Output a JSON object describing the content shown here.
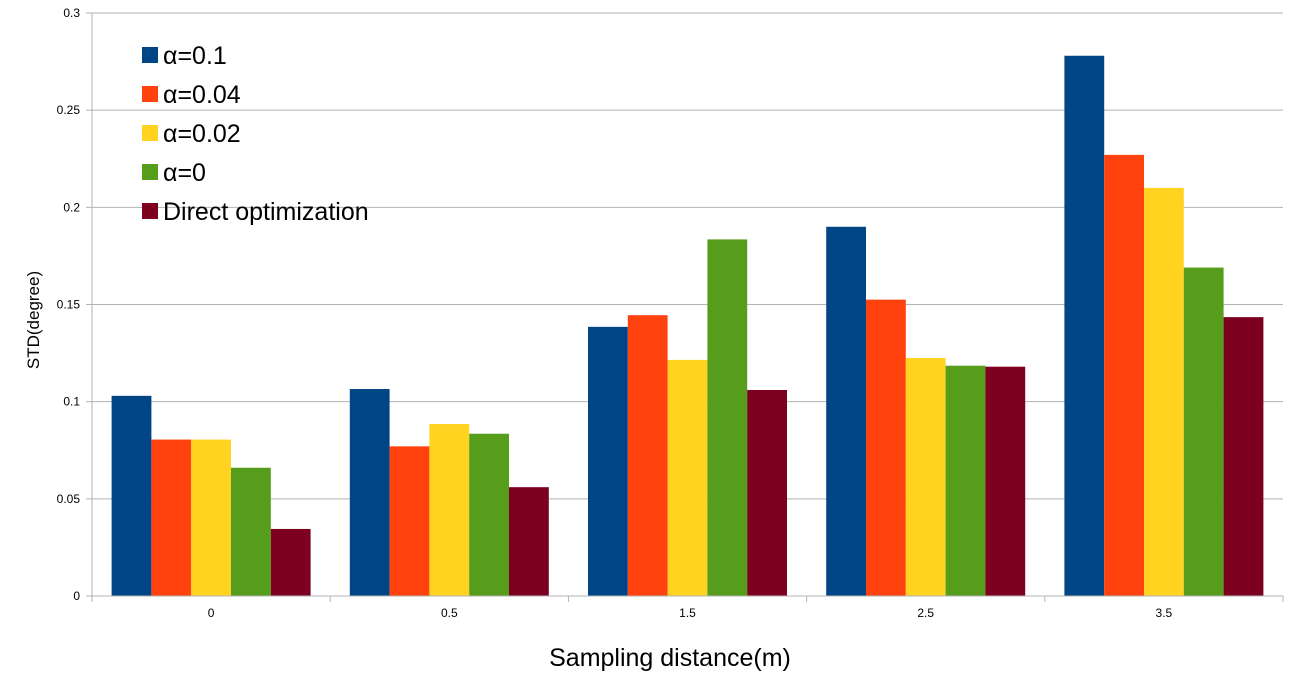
{
  "chart_data": {
    "type": "bar",
    "title": "",
    "xlabel": "Sampling distance(m)",
    "ylabel": "STD(degree)",
    "categories": [
      "0",
      "0.5",
      "1.5",
      "2.5",
      "3.5"
    ],
    "ylim": [
      0,
      0.3
    ],
    "yticks": [
      0,
      0.05,
      0.1,
      0.15,
      0.2,
      0.25,
      0.3
    ],
    "ytick_labels": [
      "0",
      "0.05",
      "0.1",
      "0.15",
      "0.2",
      "0.25",
      "0.3"
    ],
    "grid": true,
    "legend_position": "top-left",
    "series": [
      {
        "name": "α=0.1",
        "color": "#004586",
        "values": [
          0.103,
          0.1065,
          0.1385,
          0.19,
          0.278
        ]
      },
      {
        "name": "α=0.04",
        "color": "#ff420e",
        "values": [
          0.0805,
          0.077,
          0.1445,
          0.1525,
          0.227
        ]
      },
      {
        "name": "α=0.02",
        "color": "#ffd320",
        "values": [
          0.0805,
          0.0885,
          0.1215,
          0.1225,
          0.21
        ]
      },
      {
        "name": "α=0",
        "color": "#579d1c",
        "values": [
          0.066,
          0.0835,
          0.1835,
          0.1185,
          0.169
        ]
      },
      {
        "name": "Direct optimization",
        "color": "#7e0021",
        "values": [
          0.0345,
          0.056,
          0.106,
          0.118,
          0.1435
        ]
      }
    ]
  }
}
